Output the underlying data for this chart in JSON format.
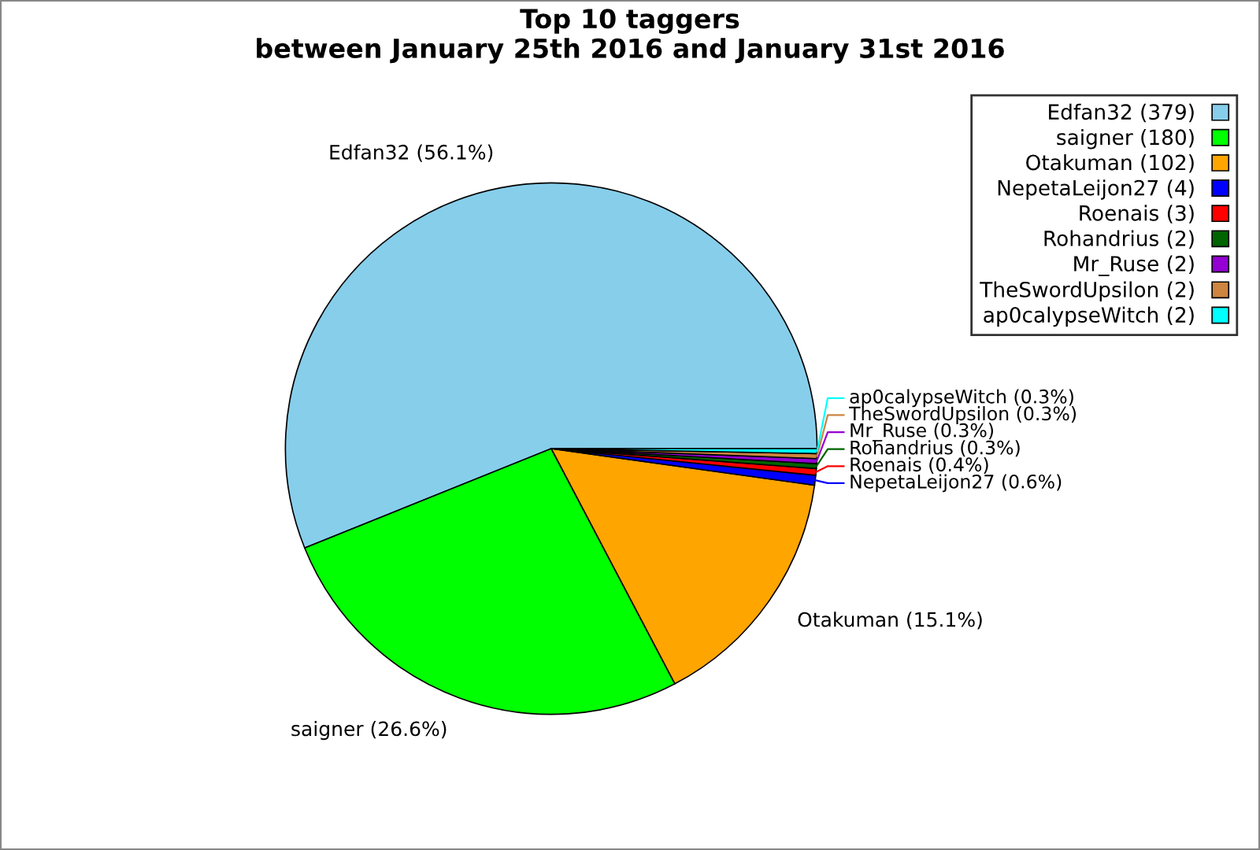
{
  "chart_data": {
    "type": "pie",
    "title": "Top 10 taggers\nbetween January 25th 2016 and January 31st 2016",
    "categories": [
      "Edfan32 (379)",
      "saigner (180)",
      "Otakuman (102)",
      "NepetaLeijon27 (4)",
      "Roenais (3)",
      "Rohandrius (2)",
      "Mr_Ruse (2)",
      "TheSwordUpsilon (2)",
      "ap0calypseWitch (2)"
    ],
    "values": [
      56.1,
      26.6,
      15.1,
      0.6,
      0.4,
      0.3,
      0.3,
      0.3,
      0.3
    ],
    "value_labels": [
      "Edfan32 (56.1%)",
      "saigner (26.6%)",
      "Otakuman (15.1%)",
      "NepetaLeijon27 (0.6%)",
      "Roenais (0.4%)",
      "Rohandrius (0.3%)",
      "Mr_Ruse (0.3%)",
      "TheSwordUpsilon (0.3%)",
      "ap0calypseWitch (0.3%)"
    ],
    "colors": [
      "#87ceeb",
      "#00ff00",
      "#ffa500",
      "#0000ff",
      "#ff0000",
      "#006400",
      "#9400d3",
      "#cd853f",
      "#00ffff"
    ],
    "legend": "top right"
  }
}
